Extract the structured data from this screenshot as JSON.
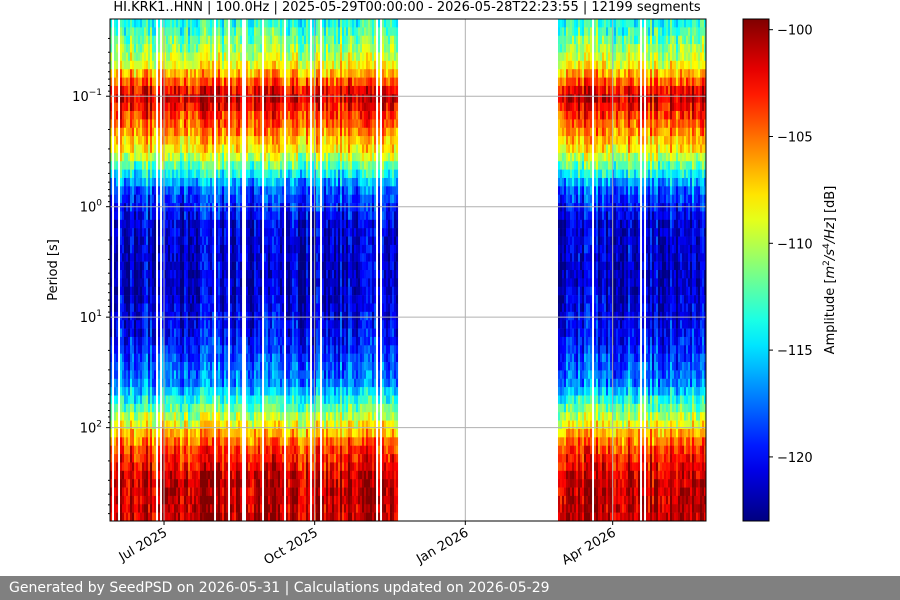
{
  "chart_data": {
    "type": "heatmap",
    "title": "HI.KRK1..HNN | 100.0Hz | 2025-05-29T00:00:00 - 2026-05-28T22:23:55 | 12199 segments",
    "ylabel": "Period [s]",
    "yscale": "log",
    "ylim": [
      700,
      0.02
    ],
    "y_ticks": [
      {
        "value": 0.1,
        "base": "10",
        "exp": "−1"
      },
      {
        "value": 1,
        "base": "10",
        "exp": "0"
      },
      {
        "value": 10,
        "base": "10",
        "exp": "1"
      },
      {
        "value": 100,
        "base": "10",
        "exp": "2"
      }
    ],
    "xlim": [
      "2025-05-29",
      "2026-05-28"
    ],
    "x_ticks": [
      {
        "date": "2025-07-01",
        "label": "Jul 2025"
      },
      {
        "date": "2025-10-01",
        "label": "Oct 2025"
      },
      {
        "date": "2026-01-01",
        "label": "Jan 2026"
      },
      {
        "date": "2026-04-01",
        "label": "Apr 2026"
      }
    ],
    "data_gap": [
      "2025-11-22",
      "2026-02-26"
    ],
    "grid": true,
    "colorbar": {
      "label": "Amplitude [m²/s⁴/Hz] [dB]",
      "label_parts": [
        "Amplitude [",
        "m",
        "2",
        "/s",
        "4",
        "/Hz",
        "] [dB]"
      ],
      "range": [
        -123,
        -99.5
      ],
      "ticks": [
        -100,
        -105,
        -110,
        -115,
        -120
      ],
      "tick_labels": [
        "−100",
        "−105",
        "−110",
        "−115",
        "−120"
      ],
      "colormap": "jet"
    },
    "spectral_profile": {
      "period": [
        0.02,
        0.05,
        0.1,
        0.3,
        0.7,
        1.5,
        5,
        15,
        40,
        80,
        150,
        300,
        700
      ],
      "amplitude_db": [
        -114,
        -109,
        -101,
        -108,
        -118,
        -121,
        -121.5,
        -120,
        -117,
        -110,
        -104,
        -101,
        -101
      ]
    }
  },
  "footer": {
    "text": "Generated by SeedPSD on 2026-05-31 | Calculations updated on 2026-05-29"
  }
}
